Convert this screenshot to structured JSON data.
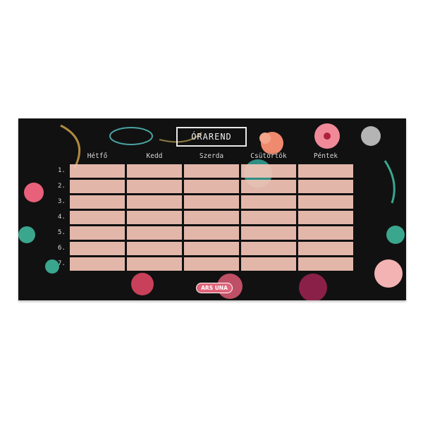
{
  "title": "ÓRAREND",
  "days": [
    "Hétfő",
    "Kedd",
    "Szerda",
    "Csütörtök",
    "Péntek"
  ],
  "periods": [
    "1.",
    "2.",
    "3.",
    "4.",
    "5.",
    "6.",
    "7."
  ],
  "brand": "ARS UNA",
  "colors": {
    "background": "#111111",
    "cell": "#f2c4b6",
    "logo": "#e0647a"
  }
}
